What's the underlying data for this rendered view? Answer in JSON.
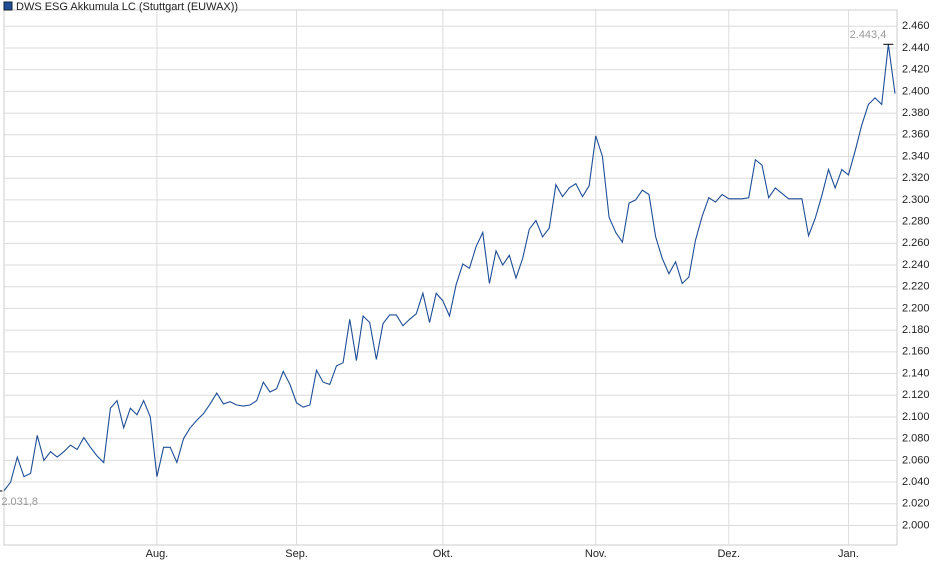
{
  "chart_data": {
    "type": "line",
    "series": [
      {
        "name": "DWS ESG Akkumula LC (Stuttgart (EUWAX))",
        "color": "#1f4e96",
        "values": [
          2.032,
          2.04,
          2.063,
          2.045,
          2.048,
          2.083,
          2.06,
          2.068,
          2.063,
          2.068,
          2.074,
          2.07,
          2.081,
          2.072,
          2.064,
          2.058,
          2.108,
          2.115,
          2.09,
          2.108,
          2.102,
          2.115,
          2.1,
          2.045,
          2.072,
          2.072,
          2.058,
          2.08,
          2.09,
          2.097,
          2.103,
          2.112,
          2.122,
          2.112,
          2.114,
          2.111,
          2.11,
          2.111,
          2.115,
          2.132,
          2.123,
          2.126,
          2.142,
          2.13,
          2.113,
          2.109,
          2.111,
          2.143,
          2.132,
          2.13,
          2.147,
          2.15,
          2.19,
          2.152,
          2.193,
          2.187,
          2.153,
          2.186,
          2.194,
          2.194,
          2.184,
          2.19,
          2.195,
          2.214,
          2.187,
          2.214,
          2.207,
          2.193,
          2.222,
          2.241,
          2.237,
          2.257,
          2.27,
          2.223,
          2.253,
          2.24,
          2.249,
          2.228,
          2.246,
          2.273,
          2.281,
          2.266,
          2.274,
          2.314,
          2.303,
          2.311,
          2.315,
          2.303,
          2.313,
          2.359,
          2.34,
          2.284,
          2.27,
          2.261,
          2.297,
          2.3,
          2.309,
          2.305,
          2.266,
          2.246,
          2.232,
          2.243,
          2.223,
          2.229,
          2.263,
          2.285,
          2.302,
          2.298,
          2.305,
          2.301,
          2.301,
          2.301,
          2.302,
          2.337,
          2.332,
          2.302,
          2.311,
          2.306,
          2.301,
          2.301,
          2.301,
          2.267,
          2.283,
          2.304,
          2.328,
          2.311,
          2.328,
          2.323,
          2.345,
          2.369,
          2.388,
          2.394,
          2.388,
          2.4434,
          2.398
        ]
      }
    ],
    "annotations": [
      {
        "text": "2.031,8",
        "value": 2.0318
      },
      {
        "text": "2.443,4",
        "value": 2.4434
      }
    ],
    "xlim": [
      0,
      134
    ],
    "xticks": [
      {
        "value": 23,
        "label": "Aug."
      },
      {
        "value": 44,
        "label": "Sep."
      },
      {
        "value": 66,
        "label": "Okt."
      },
      {
        "value": 89,
        "label": "Nov."
      },
      {
        "value": 109,
        "label": "Dez."
      },
      {
        "value": 127,
        "label": "Jan."
      }
    ],
    "ylim": [
      1.982,
      2.475
    ],
    "yticks": [
      {
        "value": 2.0,
        "label": "2.000"
      },
      {
        "value": 2.02,
        "label": "2.020"
      },
      {
        "value": 2.04,
        "label": "2.040"
      },
      {
        "value": 2.06,
        "label": "2.060"
      },
      {
        "value": 2.08,
        "label": "2.080"
      },
      {
        "value": 2.1,
        "label": "2.100"
      },
      {
        "value": 2.12,
        "label": "2.120"
      },
      {
        "value": 2.14,
        "label": "2.140"
      },
      {
        "value": 2.16,
        "label": "2.160"
      },
      {
        "value": 2.18,
        "label": "2.180"
      },
      {
        "value": 2.2,
        "label": "2.200"
      },
      {
        "value": 2.22,
        "label": "2.220"
      },
      {
        "value": 2.24,
        "label": "2.240"
      },
      {
        "value": 2.26,
        "label": "2.260"
      },
      {
        "value": 2.28,
        "label": "2.280"
      },
      {
        "value": 2.3,
        "label": "2.300"
      },
      {
        "value": 2.32,
        "label": "2.320"
      },
      {
        "value": 2.34,
        "label": "2.340"
      },
      {
        "value": 2.36,
        "label": "2.360"
      },
      {
        "value": 2.38,
        "label": "2.380"
      },
      {
        "value": 2.4,
        "label": "2.400"
      },
      {
        "value": 2.42,
        "label": "2.420"
      },
      {
        "value": 2.44,
        "label": "2.440"
      },
      {
        "value": 2.46,
        "label": "2.460"
      }
    ],
    "grid": true
  }
}
